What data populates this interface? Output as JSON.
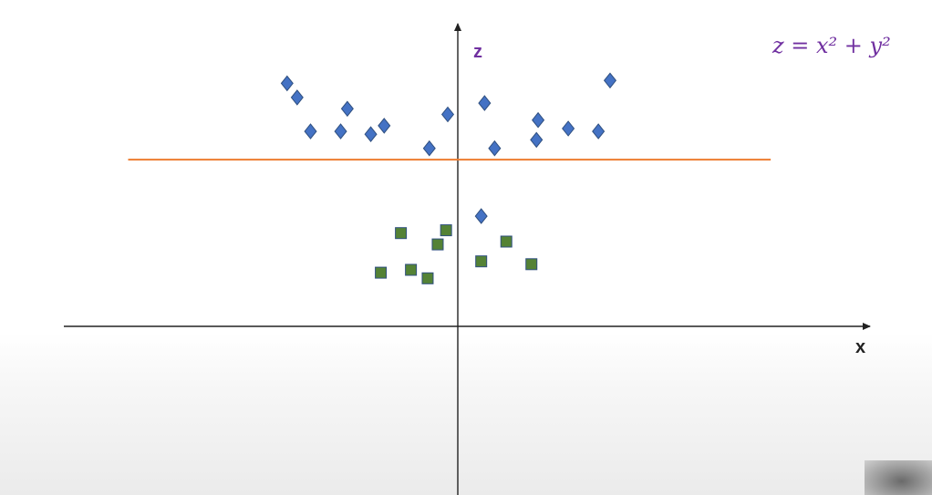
{
  "chart_data": {
    "type": "scatter",
    "xlabel": "x",
    "ylabel": "z",
    "annotation": {
      "formula": "z = x² + y²",
      "color": "#7030A0"
    },
    "xlim": [
      -10,
      10
    ],
    "ylim": [
      0,
      10
    ],
    "decision_boundary": {
      "z": 5.9,
      "x_from": -9.85,
      "x_to": 9.35,
      "color": "#ED7D31"
    },
    "series": [
      {
        "marker": "diamond",
        "color": "#4472C4",
        "points": [
          {
            "x": -5.1,
            "z": 8.6
          },
          {
            "x": -4.8,
            "z": 8.1
          },
          {
            "x": -4.4,
            "z": 6.9
          },
          {
            "x": -3.3,
            "z": 7.7
          },
          {
            "x": -3.5,
            "z": 6.9
          },
          {
            "x": -2.6,
            "z": 6.8
          },
          {
            "x": -2.2,
            "z": 7.1
          },
          {
            "x": -0.85,
            "z": 6.3
          },
          {
            "x": -0.3,
            "z": 7.5
          },
          {
            "x": 0.8,
            "z": 7.9
          },
          {
            "x": 1.1,
            "z": 6.3
          },
          {
            "x": 2.4,
            "z": 7.3
          },
          {
            "x": 2.35,
            "z": 6.6
          },
          {
            "x": 3.3,
            "z": 7.0
          },
          {
            "x": 4.2,
            "z": 6.9
          },
          {
            "x": 4.55,
            "z": 8.7
          },
          {
            "x": 0.7,
            "z": 3.9
          }
        ]
      },
      {
        "marker": "square",
        "color": "#548235",
        "points": [
          {
            "x": -1.7,
            "z": 3.3
          },
          {
            "x": -0.35,
            "z": 3.4
          },
          {
            "x": -0.6,
            "z": 2.9
          },
          {
            "x": -2.3,
            "z": 1.9
          },
          {
            "x": -1.4,
            "z": 2.0
          },
          {
            "x": -0.9,
            "z": 1.7
          },
          {
            "x": 0.7,
            "z": 2.3
          },
          {
            "x": 1.45,
            "z": 3.0
          },
          {
            "x": 2.2,
            "z": 2.2
          }
        ]
      }
    ]
  }
}
